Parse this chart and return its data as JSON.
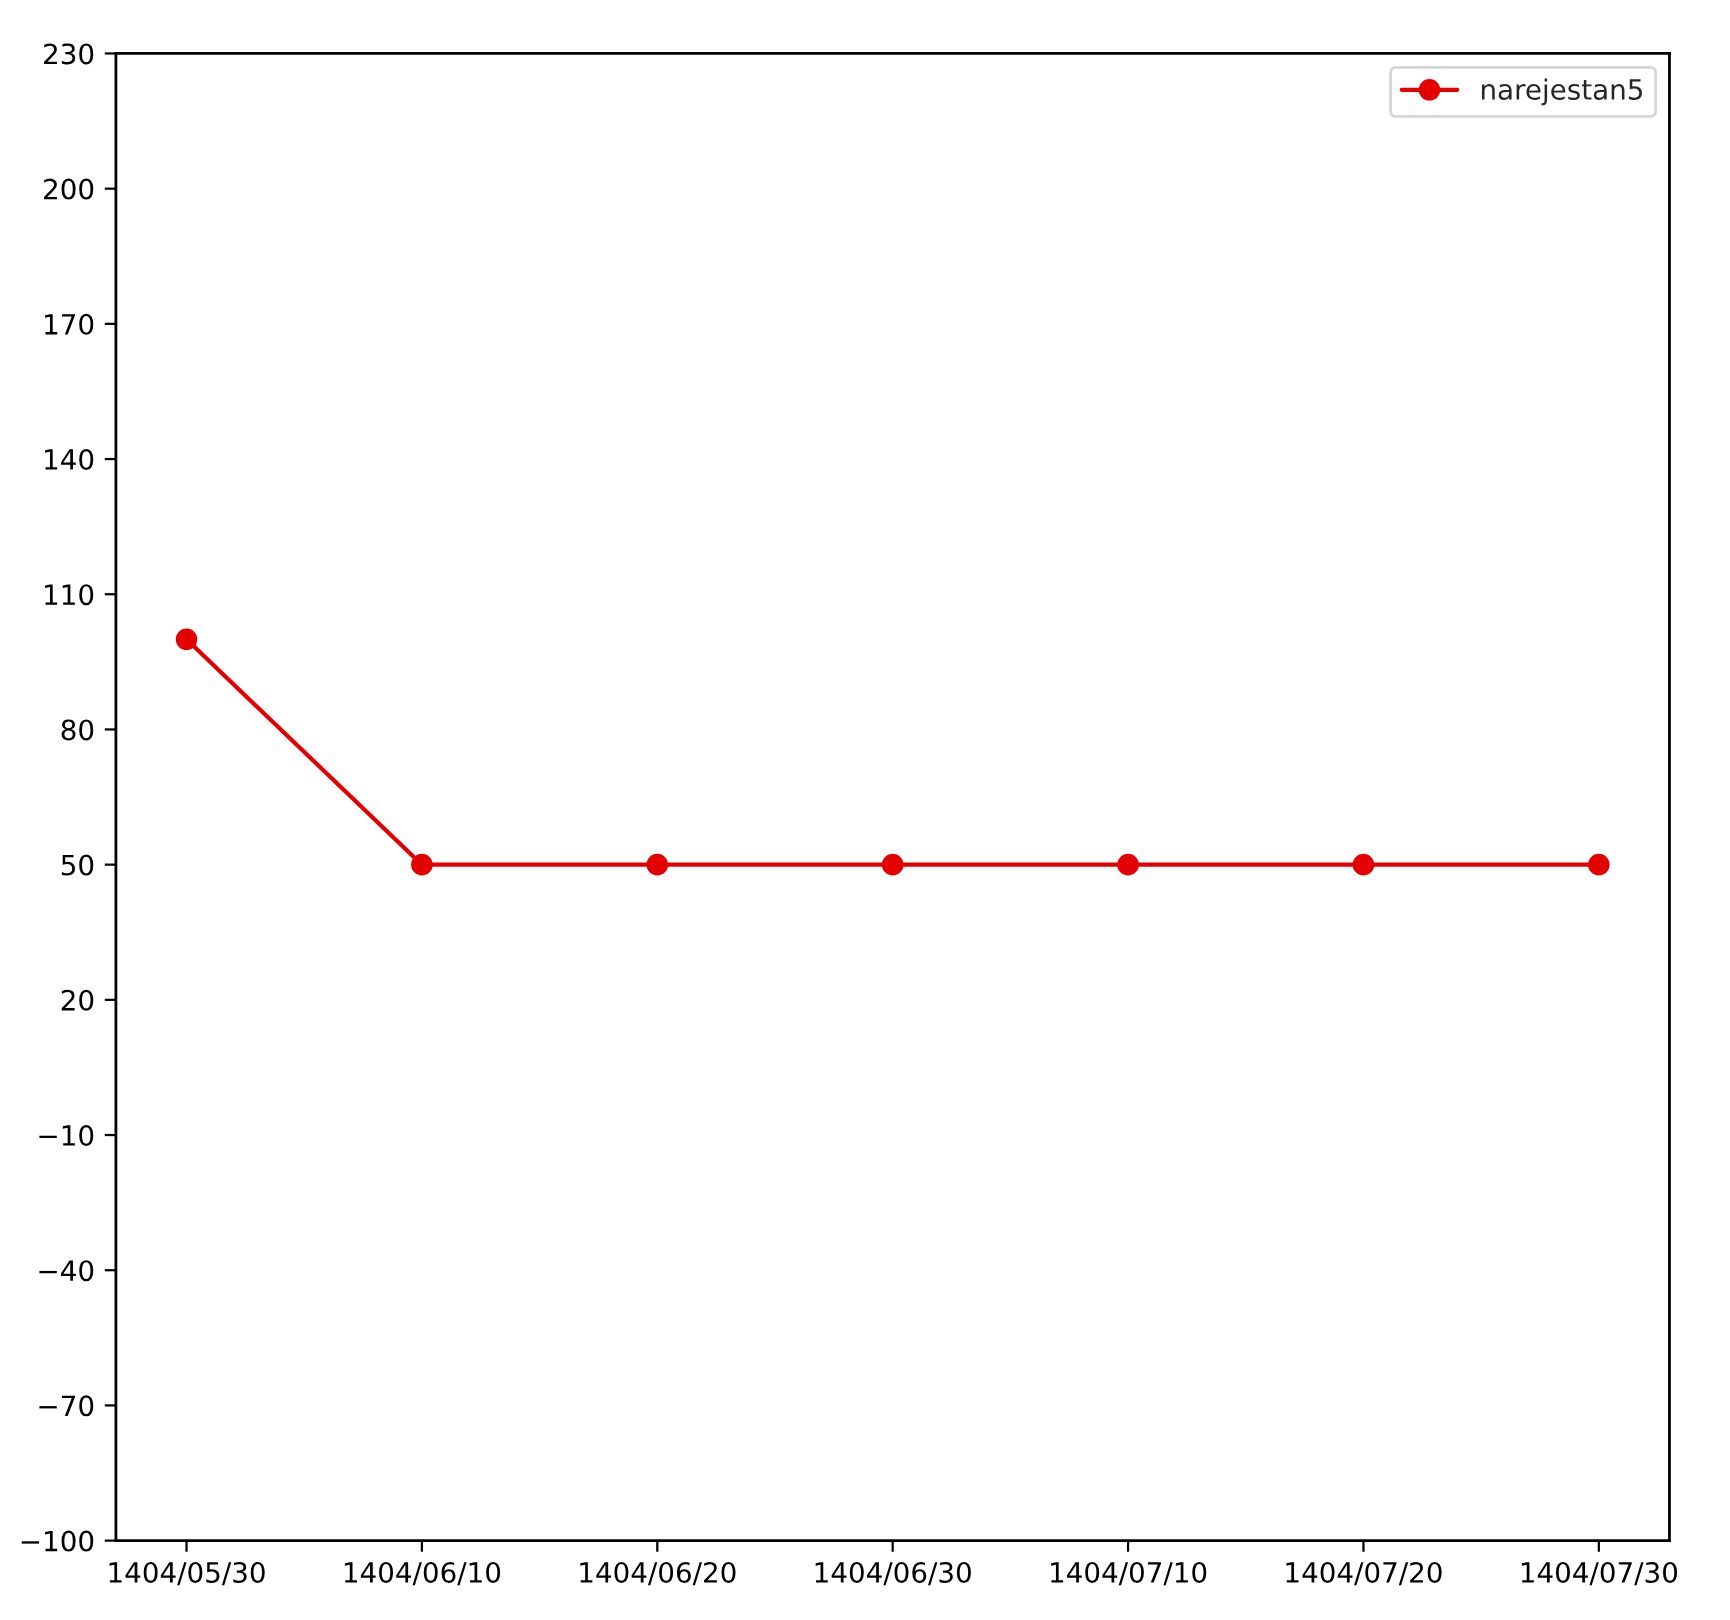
{
  "chart_data": {
    "type": "line",
    "categories": [
      "1404/05/30",
      "1404/06/10",
      "1404/06/20",
      "1404/06/30",
      "1404/07/10",
      "1404/07/20",
      "1404/07/30"
    ],
    "series": [
      {
        "name": "narejestan5",
        "color": "#e50000",
        "values": [
          100,
          50,
          50,
          50,
          50,
          50,
          50
        ]
      }
    ],
    "ylim": [
      -100,
      230
    ],
    "yticks": [
      -100,
      -70,
      -40,
      -10,
      20,
      50,
      80,
      110,
      140,
      170,
      200,
      230
    ],
    "marker": "circle",
    "line_style": "solid",
    "grid": false,
    "legend": "top right"
  }
}
